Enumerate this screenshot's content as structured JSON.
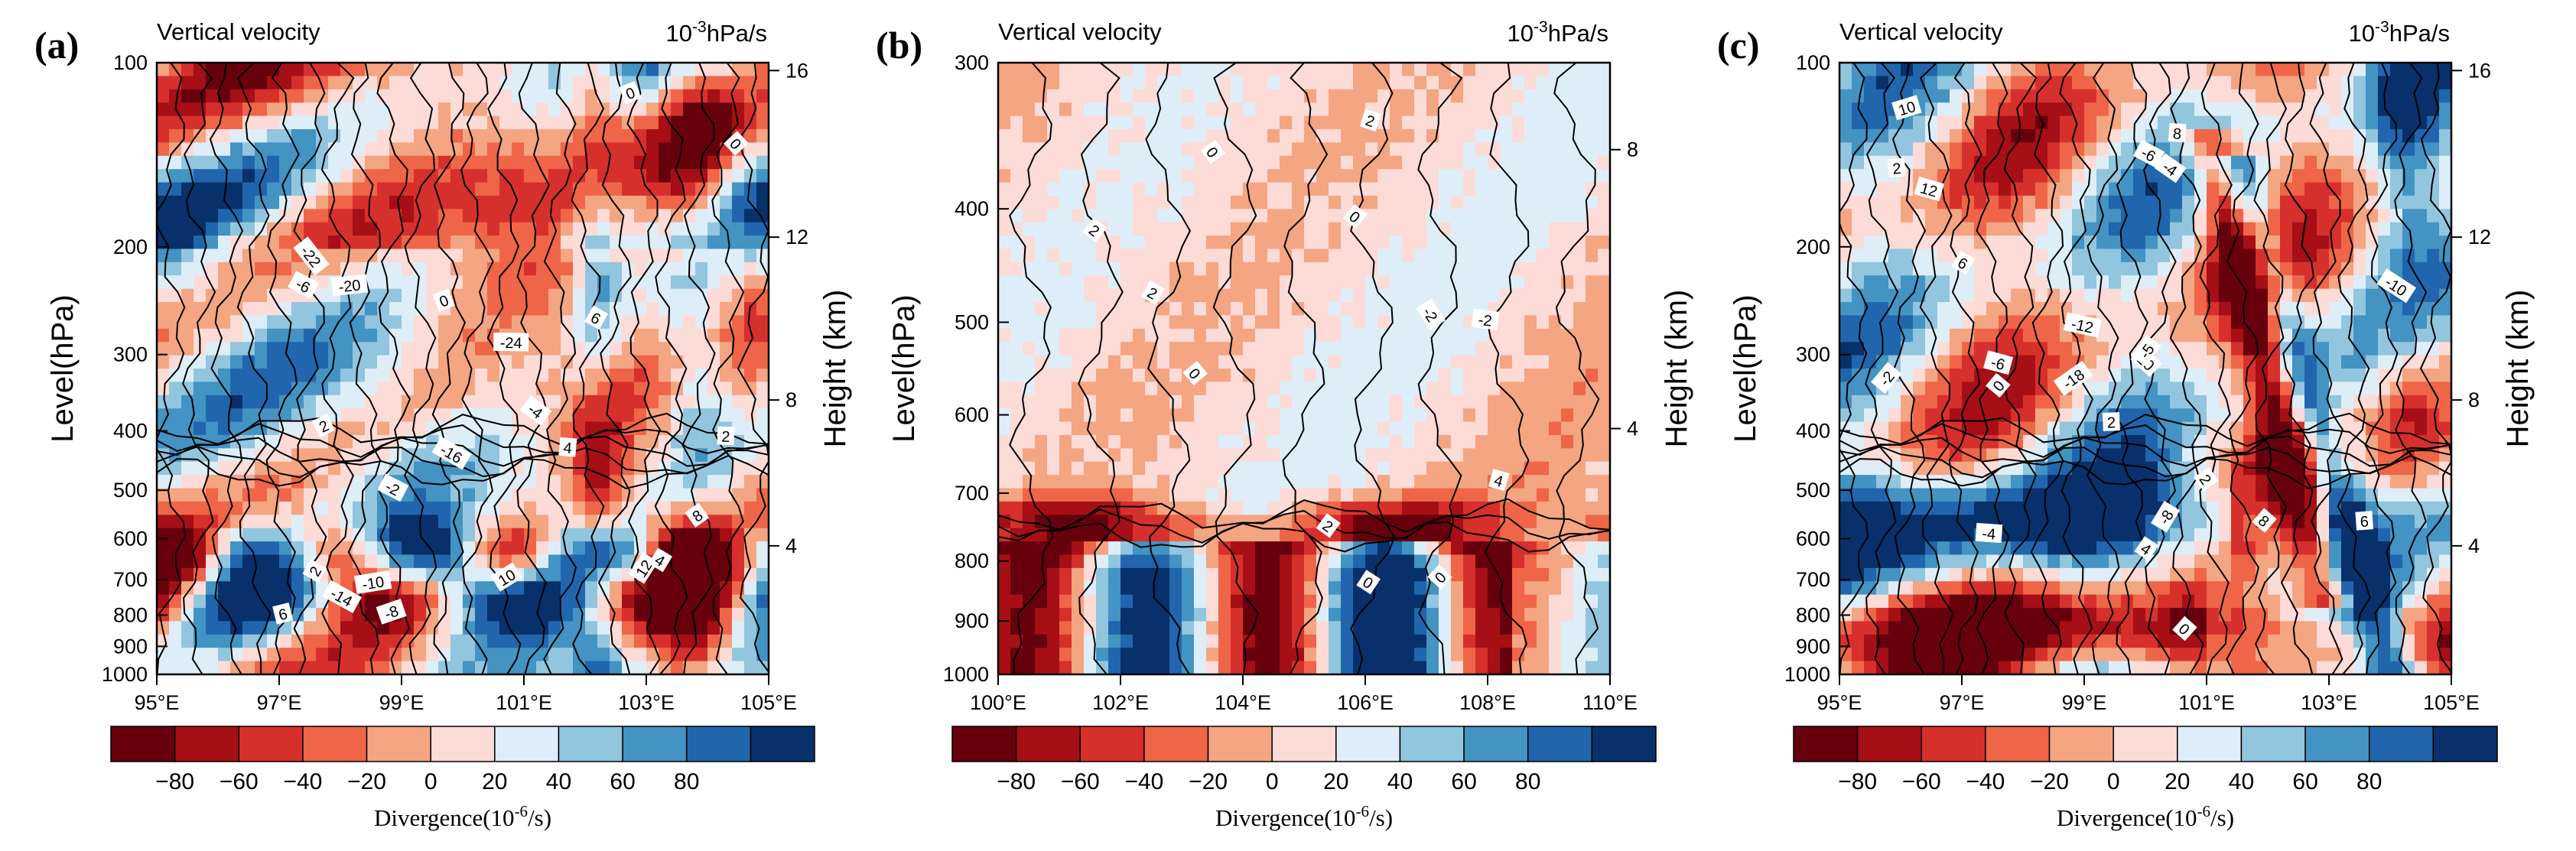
{
  "chart_data": [
    {
      "type": "heatmap",
      "panel_label": "(a)",
      "title": "Vertical velocity",
      "units": "10-3hPa/s",
      "units_base": "10",
      "units_exp": "-3",
      "units_rest": "hPa/s",
      "xlabel": "",
      "ylabel": "Level(hPa)",
      "y2label": "Height (km)",
      "x_ticks": [
        95,
        97,
        99,
        101,
        103,
        105
      ],
      "x_tick_labels": [
        "95°E",
        "97°E",
        "99°E",
        "101°E",
        "103°E",
        "105°E"
      ],
      "xlim": [
        95,
        105
      ],
      "y_ticks": [
        100,
        200,
        300,
        400,
        500,
        600,
        700,
        800,
        900,
        1000
      ],
      "ylim": [
        1000,
        100
      ],
      "y2_ticks": [
        4,
        8,
        12,
        16
      ],
      "contour_labels": [
        "2",
        "0",
        "-4",
        "-2",
        "0",
        "2",
        "4",
        "6",
        "8",
        "10",
        "12",
        "-6",
        "-8",
        "-10",
        "-16",
        "-22",
        "-20",
        "-24",
        "-14",
        "6",
        "4",
        "2",
        "0"
      ],
      "colorbar": {
        "label": "Divergence(10-6/s)",
        "label_main": "Divergence(10",
        "label_exp": "-6",
        "label_rest": "/s)",
        "levels": [
          -80,
          -60,
          -40,
          -20,
          0,
          20,
          40,
          60,
          80
        ],
        "tick_labels": [
          "−80",
          "−60",
          "−40",
          "−20",
          "0",
          "20",
          "40",
          "60",
          "80"
        ],
        "colors": [
          "#67000d",
          "#a50f15",
          "#d6302c",
          "#ef6548",
          "#f4a582",
          "#fddbd7",
          "#deeef8",
          "#92c5de",
          "#4393c3",
          "#2166ac",
          "#08306b"
        ]
      }
    },
    {
      "type": "heatmap",
      "panel_label": "(b)",
      "title": "Vertical velocity",
      "units": "10-3hPa/s",
      "units_base": "10",
      "units_exp": "-3",
      "units_rest": "hPa/s",
      "xlabel": "",
      "ylabel": "Level(hPa)",
      "y2label": "Height (km)",
      "x_ticks": [
        100,
        102,
        104,
        106,
        108,
        110
      ],
      "x_tick_labels": [
        "100°E",
        "102°E",
        "104°E",
        "106°E",
        "108°E",
        "110°E"
      ],
      "xlim": [
        100,
        110
      ],
      "y_ticks": [
        300,
        400,
        500,
        600,
        700,
        800,
        900,
        1000
      ],
      "ylim": [
        1000,
        300
      ],
      "y2_ticks": [
        4,
        8
      ],
      "contour_labels": [
        "2",
        "0",
        "2",
        "4",
        "0",
        "-2",
        "-2",
        "0",
        "0",
        "0",
        "2",
        "2"
      ],
      "colorbar": {
        "label": "Divergence(10-6/s)",
        "label_main": "Divergence(10",
        "label_exp": "-6",
        "label_rest": "/s)",
        "levels": [
          -80,
          -60,
          -40,
          -20,
          0,
          20,
          40,
          60,
          80
        ],
        "tick_labels": [
          "−80",
          "−60",
          "−40",
          "−20",
          "0",
          "20",
          "40",
          "60",
          "80"
        ],
        "colors": [
          "#67000d",
          "#a50f15",
          "#d6302c",
          "#ef6548",
          "#f4a582",
          "#fddbd7",
          "#deeef8",
          "#92c5de",
          "#4393c3",
          "#2166ac",
          "#08306b"
        ]
      }
    },
    {
      "type": "heatmap",
      "panel_label": "(c)",
      "title": "Vertical velocity",
      "units": "10-3hPa/s",
      "units_base": "10",
      "units_exp": "-3",
      "units_rest": "hPa/s",
      "xlabel": "",
      "ylabel": "Level(hPa)",
      "y2label": "Height (km)",
      "x_ticks": [
        95,
        97,
        99,
        101,
        103,
        105
      ],
      "x_tick_labels": [
        "95°E",
        "97°E",
        "99°E",
        "101°E",
        "103°E",
        "105°E"
      ],
      "xlim": [
        95,
        105
      ],
      "y_ticks": [
        100,
        200,
        300,
        400,
        500,
        600,
        700,
        800,
        900,
        1000
      ],
      "ylim": [
        1000,
        100
      ],
      "y2_ticks": [
        4,
        8,
        12,
        16
      ],
      "contour_labels": [
        "0",
        "2",
        "4",
        "6",
        "8",
        "10",
        "12",
        "-6",
        "-12",
        "-4",
        "-2",
        "0",
        "2",
        "-10",
        "-18",
        "-8",
        "-6",
        "-5",
        "-4",
        "2",
        "6",
        "8",
        "10"
      ],
      "colorbar": {
        "label": "Divergence(10-6/s)",
        "label_main": "Divergence(10",
        "label_exp": "-6",
        "label_rest": "/s)",
        "levels": [
          -80,
          -60,
          -40,
          -20,
          0,
          20,
          40,
          60,
          80
        ],
        "tick_labels": [
          "−80",
          "−60",
          "−40",
          "−20",
          "0",
          "20",
          "40",
          "60",
          "80"
        ],
        "colors": [
          "#67000d",
          "#a50f15",
          "#d6302c",
          "#ef6548",
          "#f4a582",
          "#fddbd7",
          "#deeef8",
          "#92c5de",
          "#4393c3",
          "#2166ac",
          "#08306b"
        ]
      }
    }
  ]
}
